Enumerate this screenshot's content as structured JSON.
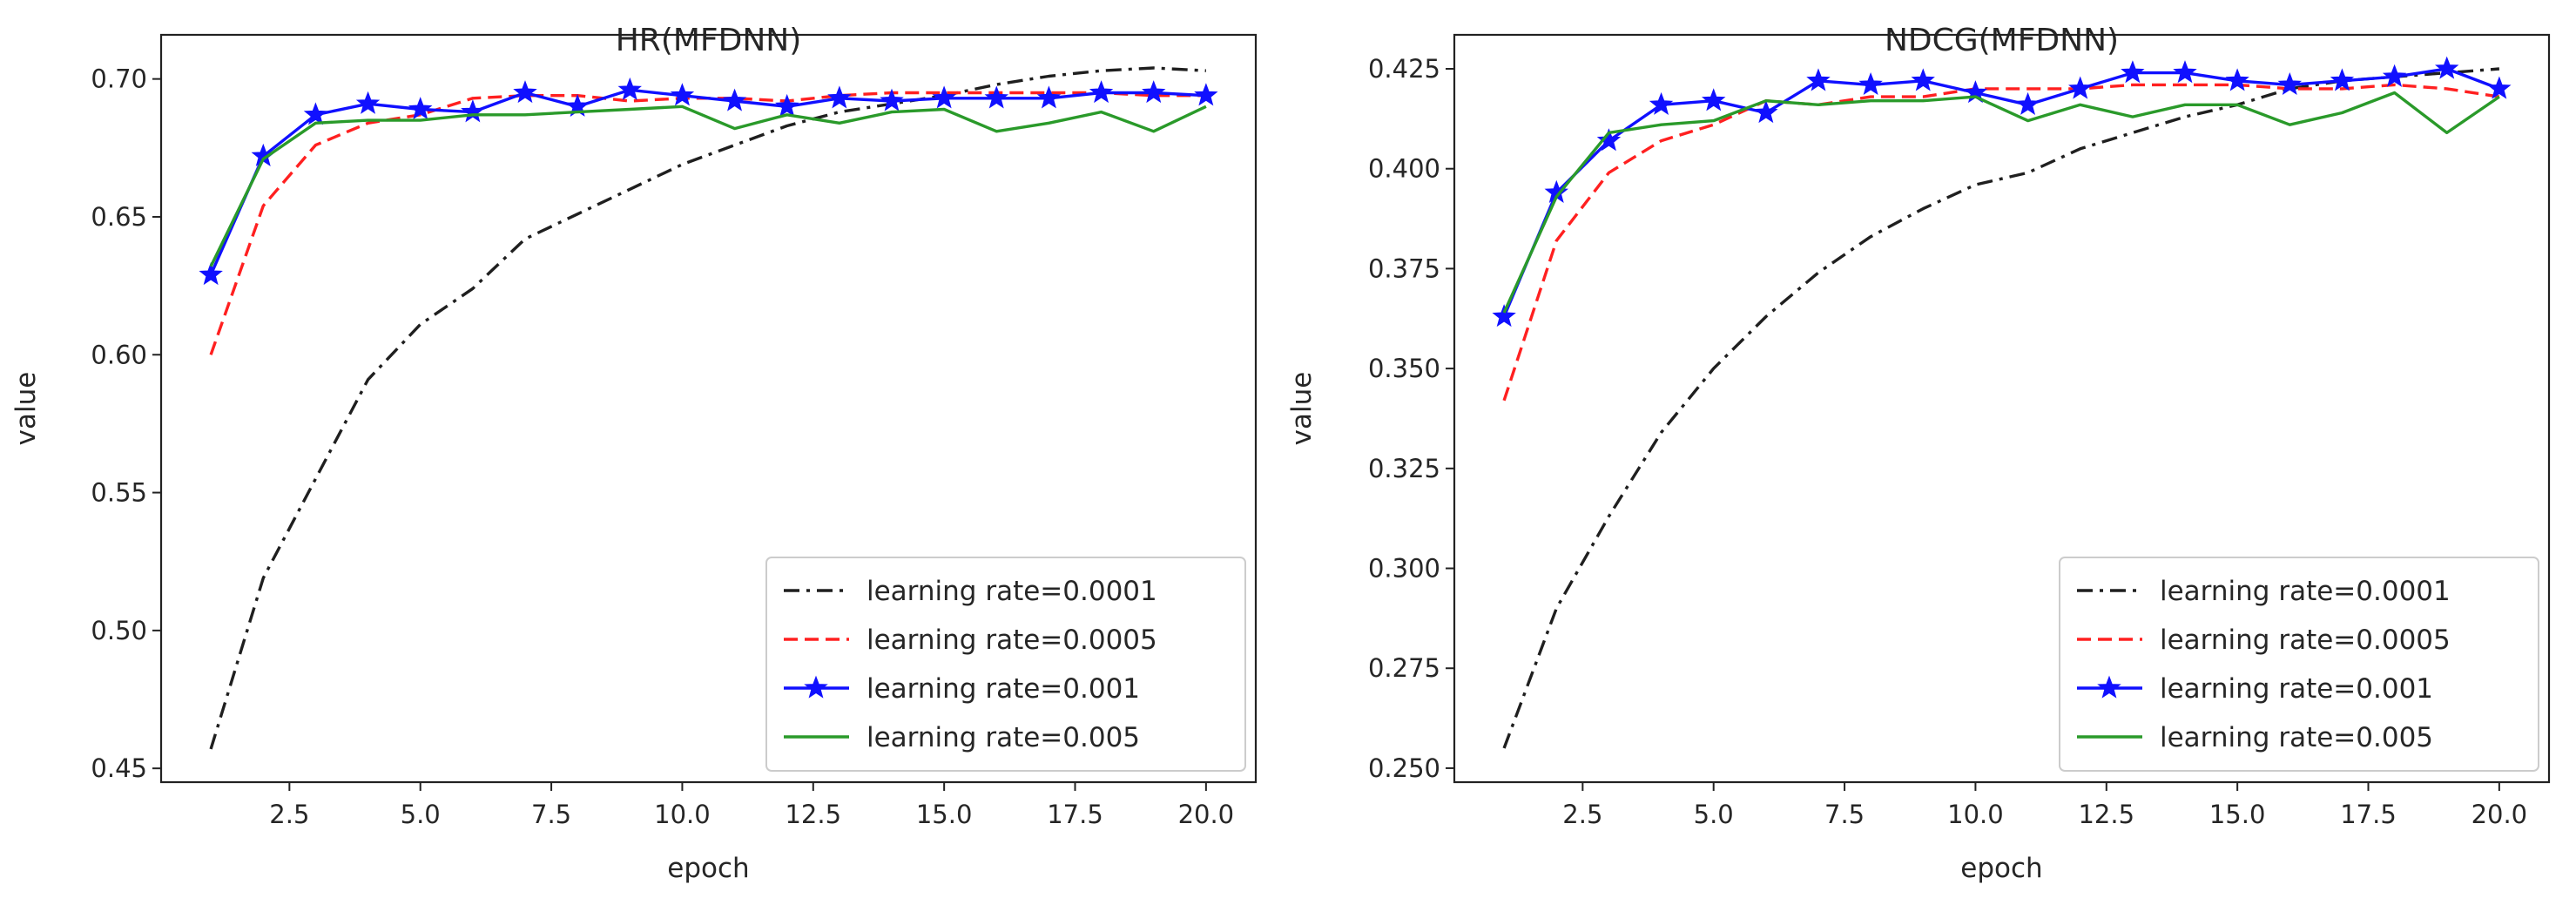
{
  "chart_data": [
    {
      "type": "line",
      "title": "HR(MFDNN)",
      "xlabel": "epoch",
      "ylabel": "value",
      "xlim": [
        0.05,
        20.95
      ],
      "ylim": [
        0.445,
        0.716
      ],
      "x_ticks": [
        2.5,
        5.0,
        7.5,
        10.0,
        12.5,
        15.0,
        17.5,
        20.0
      ],
      "x_tick_labels": [
        "2.5",
        "5.0",
        "7.5",
        "10.0",
        "12.5",
        "15.0",
        "17.5",
        "20.0"
      ],
      "y_ticks": [
        0.45,
        0.5,
        0.55,
        0.6,
        0.65,
        0.7
      ],
      "y_tick_labels": [
        "0.45",
        "0.50",
        "0.55",
        "0.60",
        "0.65",
        "0.70"
      ],
      "grid": false,
      "legend_position": "lower-right",
      "x": [
        1,
        2,
        3,
        4,
        5,
        6,
        7,
        8,
        9,
        10,
        11,
        12,
        13,
        14,
        15,
        16,
        17,
        18,
        19,
        20
      ],
      "series": [
        {
          "name": "learning rate=0.0001",
          "color": "#1f1f1f",
          "style": "dashdot",
          "marker": "none",
          "values": [
            0.457,
            0.519,
            0.555,
            0.591,
            0.611,
            0.624,
            0.642,
            0.651,
            0.66,
            0.669,
            0.676,
            0.683,
            0.688,
            0.691,
            0.694,
            0.698,
            0.701,
            0.703,
            0.704,
            0.703
          ]
        },
        {
          "name": "learning rate=0.0005",
          "color": "#ff2020",
          "style": "dashed",
          "marker": "none",
          "values": [
            0.6,
            0.654,
            0.676,
            0.684,
            0.687,
            0.693,
            0.694,
            0.694,
            0.692,
            0.693,
            0.693,
            0.692,
            0.694,
            0.695,
            0.695,
            0.695,
            0.695,
            0.695,
            0.694,
            0.694
          ]
        },
        {
          "name": "learning rate=0.001",
          "color": "#1010ff",
          "style": "solid",
          "marker": "star",
          "values": [
            0.629,
            0.672,
            0.687,
            0.691,
            0.689,
            0.688,
            0.695,
            0.69,
            0.696,
            0.694,
            0.692,
            0.69,
            0.693,
            0.692,
            0.693,
            0.693,
            0.693,
            0.695,
            0.695,
            0.694
          ]
        },
        {
          "name": "learning rate=0.005",
          "color": "#2a9a2a",
          "style": "solid",
          "marker": "none",
          "values": [
            0.632,
            0.671,
            0.684,
            0.685,
            0.685,
            0.687,
            0.687,
            0.688,
            0.689,
            0.69,
            0.682,
            0.687,
            0.684,
            0.688,
            0.689,
            0.681,
            0.684,
            0.688,
            0.681,
            0.69
          ]
        }
      ]
    },
    {
      "type": "line",
      "title": "NDCG(MFDNN)",
      "xlabel": "epoch",
      "ylabel": "value",
      "xlim": [
        0.05,
        20.95
      ],
      "ylim": [
        0.2465,
        0.4335
      ],
      "x_ticks": [
        2.5,
        5.0,
        7.5,
        10.0,
        12.5,
        15.0,
        17.5,
        20.0
      ],
      "x_tick_labels": [
        "2.5",
        "5.0",
        "7.5",
        "10.0",
        "12.5",
        "15.0",
        "17.5",
        "20.0"
      ],
      "y_ticks": [
        0.25,
        0.275,
        0.3,
        0.325,
        0.35,
        0.375,
        0.4,
        0.425
      ],
      "y_tick_labels": [
        "0.250",
        "0.275",
        "0.300",
        "0.325",
        "0.350",
        "0.375",
        "0.400",
        "0.425"
      ],
      "grid": false,
      "legend_position": "lower-right",
      "x": [
        1,
        2,
        3,
        4,
        5,
        6,
        7,
        8,
        9,
        10,
        11,
        12,
        13,
        14,
        15,
        16,
        17,
        18,
        19,
        20
      ],
      "series": [
        {
          "name": "learning rate=0.0001",
          "color": "#1f1f1f",
          "style": "dashdot",
          "marker": "none",
          "values": [
            0.255,
            0.29,
            0.313,
            0.334,
            0.35,
            0.363,
            0.374,
            0.383,
            0.39,
            0.396,
            0.399,
            0.405,
            0.409,
            0.413,
            0.416,
            0.42,
            0.422,
            0.423,
            0.424,
            0.425
          ]
        },
        {
          "name": "learning rate=0.0005",
          "color": "#ff2020",
          "style": "dashed",
          "marker": "none",
          "values": [
            0.342,
            0.382,
            0.399,
            0.407,
            0.411,
            0.417,
            0.416,
            0.418,
            0.418,
            0.42,
            0.42,
            0.42,
            0.421,
            0.421,
            0.421,
            0.42,
            0.42,
            0.421,
            0.42,
            0.418
          ]
        },
        {
          "name": "learning rate=0.001",
          "color": "#1010ff",
          "style": "solid",
          "marker": "star",
          "values": [
            0.363,
            0.394,
            0.407,
            0.416,
            0.417,
            0.414,
            0.422,
            0.421,
            0.422,
            0.419,
            0.416,
            0.42,
            0.424,
            0.424,
            0.422,
            0.421,
            0.422,
            0.423,
            0.425,
            0.42
          ]
        },
        {
          "name": "learning rate=0.005",
          "color": "#2a9a2a",
          "style": "solid",
          "marker": "none",
          "values": [
            0.364,
            0.393,
            0.409,
            0.411,
            0.412,
            0.417,
            0.416,
            0.417,
            0.417,
            0.418,
            0.412,
            0.416,
            0.413,
            0.416,
            0.416,
            0.411,
            0.414,
            0.419,
            0.409,
            0.418
          ]
        }
      ]
    }
  ]
}
